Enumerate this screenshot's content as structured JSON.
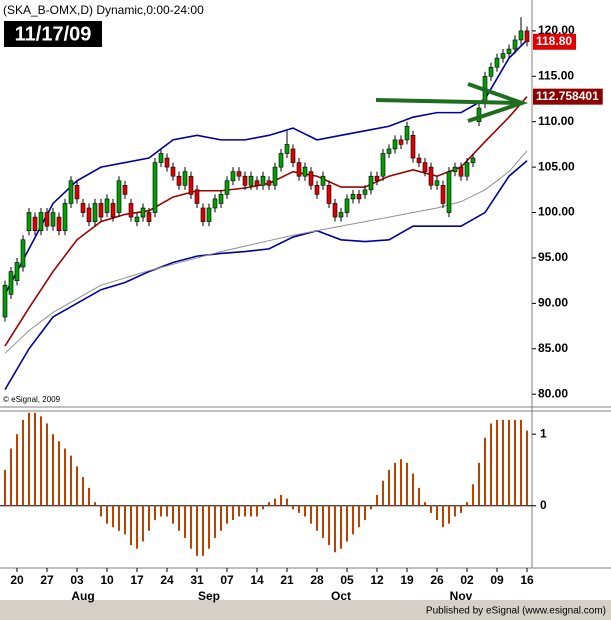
{
  "chart_data": {
    "type": "candlestick",
    "title": "(SKA_B-OMX,D) Dynamic,0:00-24:00",
    "date_label": "11/17/09",
    "copyright": "© eSignal, 2009",
    "footer": "Published by eSignal (www.esignal.com)",
    "categories": [
      null,
      null,
      "20",
      null,
      null,
      null,
      null,
      "27",
      null,
      null,
      null,
      null,
      "03",
      null,
      null,
      null,
      null,
      "10",
      null,
      null,
      null,
      null,
      "17",
      null,
      null,
      null,
      null,
      "24",
      null,
      null,
      null,
      null,
      "31",
      null,
      null,
      null,
      null,
      "07",
      null,
      null,
      null,
      null,
      "14",
      null,
      null,
      null,
      null,
      "21",
      null,
      null,
      null,
      null,
      "28",
      null,
      null,
      null,
      null,
      "05",
      null,
      null,
      null,
      null,
      "12",
      null,
      null,
      null,
      null,
      "19",
      null,
      null,
      null,
      null,
      "26",
      null,
      null,
      null,
      null,
      "02",
      null,
      null,
      null,
      null,
      "09",
      null,
      null,
      null,
      null,
      "16"
    ],
    "months": [
      null,
      null,
      null,
      null,
      null,
      null,
      null,
      null,
      null,
      null,
      null,
      null,
      null,
      "Aug",
      null,
      null,
      null,
      null,
      null,
      null,
      null,
      null,
      null,
      null,
      null,
      null,
      null,
      null,
      null,
      null,
      null,
      null,
      null,
      null,
      "Sep",
      null,
      null,
      null,
      null,
      null,
      null,
      null,
      null,
      null,
      null,
      null,
      null,
      null,
      null,
      null,
      null,
      null,
      null,
      null,
      null,
      null,
      "Oct",
      null,
      null,
      null,
      null,
      null,
      null,
      null,
      null,
      null,
      null,
      null,
      null,
      null,
      null,
      null,
      null,
      null,
      null,
      null,
      "Nov",
      null,
      null,
      null,
      null,
      null,
      null,
      null,
      null,
      null,
      null
    ],
    "ohlc": [
      [
        88.5,
        92.5,
        88,
        92
      ],
      [
        91,
        94,
        90.5,
        93.5
      ],
      [
        92.5,
        95,
        92,
        94.5
      ],
      [
        94,
        97.5,
        93.5,
        97
      ],
      [
        98,
        100.5,
        97.5,
        100
      ],
      [
        99.5,
        100,
        97.5,
        98
      ],
      [
        98,
        100.5,
        97.5,
        100
      ],
      [
        100,
        100.5,
        98,
        98.5
      ],
      [
        98.5,
        100.5,
        98,
        100
      ],
      [
        99.5,
        100,
        97.5,
        98
      ],
      [
        98,
        101.5,
        97.5,
        101
      ],
      [
        101,
        104,
        100.5,
        103.5
      ],
      [
        103,
        103.5,
        101,
        101.5
      ],
      [
        101,
        101.5,
        99.5,
        100
      ],
      [
        100.5,
        101,
        98.5,
        99
      ],
      [
        99,
        101.5,
        98.5,
        101
      ],
      [
        101,
        101.5,
        99,
        99.5
      ],
      [
        100,
        102,
        99.5,
        101.5
      ],
      [
        101,
        101.5,
        99,
        99.5
      ],
      [
        100,
        104,
        99.5,
        103.5
      ],
      [
        103,
        103.5,
        101.5,
        102
      ],
      [
        101,
        101.5,
        99,
        99.5
      ],
      [
        99,
        100,
        98.5,
        99.5
      ],
      [
        99.5,
        101,
        99,
        100.5
      ],
      [
        100,
        100.5,
        98.5,
        99
      ],
      [
        100,
        106,
        99.5,
        105.5
      ],
      [
        105.5,
        107,
        105,
        106.5
      ],
      [
        106,
        106.5,
        104.5,
        105
      ],
      [
        105,
        105.5,
        103.5,
        104
      ],
      [
        104,
        104.5,
        102.5,
        103
      ],
      [
        103,
        105,
        102.5,
        104.5
      ],
      [
        104,
        104.5,
        101.5,
        102
      ],
      [
        102.5,
        103,
        100.5,
        101
      ],
      [
        100.5,
        101,
        98.5,
        99
      ],
      [
        99,
        101,
        98.5,
        100.5
      ],
      [
        100.5,
        102,
        100,
        101.5
      ],
      [
        101,
        102.5,
        100.5,
        102
      ],
      [
        102,
        104,
        101.5,
        103.5
      ],
      [
        103.5,
        105,
        103,
        104.5
      ],
      [
        104.5,
        105,
        103.5,
        104
      ],
      [
        104,
        104.5,
        102.5,
        103
      ],
      [
        103,
        104.5,
        102.5,
        104
      ],
      [
        103.5,
        104,
        102.5,
        103
      ],
      [
        103,
        104.5,
        102.5,
        104
      ],
      [
        103.5,
        104,
        102.5,
        103
      ],
      [
        103,
        105.5,
        102.5,
        105
      ],
      [
        105,
        107,
        104.5,
        106.5
      ],
      [
        106.5,
        109,
        106,
        107.5
      ],
      [
        107,
        107.5,
        105,
        105.5
      ],
      [
        105.5,
        106,
        103.5,
        104
      ],
      [
        104,
        105.5,
        103.5,
        105
      ],
      [
        104.5,
        105,
        102.5,
        103
      ],
      [
        103,
        103.5,
        101.5,
        102
      ],
      [
        103,
        104.5,
        102.5,
        104
      ],
      [
        103,
        103.5,
        100.5,
        101
      ],
      [
        101,
        101.5,
        99,
        99.5
      ],
      [
        99.5,
        100.5,
        99,
        100
      ],
      [
        100,
        102,
        99.5,
        101.5
      ],
      [
        101.5,
        102.5,
        101,
        102
      ],
      [
        102,
        102.5,
        101,
        101.5
      ],
      [
        102,
        103,
        101.5,
        102.5
      ],
      [
        102.5,
        104.5,
        102,
        104
      ],
      [
        104,
        104.5,
        103,
        103.5
      ],
      [
        104,
        107,
        103.5,
        106.5
      ],
      [
        106.5,
        107.5,
        106,
        107
      ],
      [
        107,
        108.5,
        106.5,
        108
      ],
      [
        108,
        108.5,
        107,
        107.5
      ],
      [
        108,
        110,
        107.5,
        109.5
      ],
      [
        108.5,
        109,
        105.5,
        106
      ],
      [
        106,
        106.5,
        105,
        105.5
      ],
      [
        105.5,
        106,
        104,
        104.5
      ],
      [
        105,
        105.5,
        102.5,
        103
      ],
      [
        103,
        104,
        102.5,
        103.5
      ],
      [
        103,
        103.5,
        100.5,
        101
      ],
      [
        100,
        105,
        99.5,
        104.5
      ],
      [
        104.5,
        105.5,
        104,
        105
      ],
      [
        105,
        105.5,
        103.5,
        104
      ],
      [
        104,
        106,
        103.5,
        105.5
      ],
      [
        105.5,
        106.5,
        105,
        106
      ],
      [
        110,
        112,
        109.5,
        111.5
      ],
      [
        112,
        115.5,
        111.5,
        115
      ],
      [
        115,
        116.5,
        114.5,
        116
      ],
      [
        116,
        117.5,
        115.5,
        117
      ],
      [
        117,
        118,
        116.5,
        117.5
      ],
      [
        117.5,
        118.5,
        117,
        118
      ],
      [
        118,
        119.5,
        117.5,
        119
      ],
      [
        119,
        121.5,
        118.5,
        120
      ],
      [
        120,
        120.5,
        118.3,
        118.8
      ]
    ],
    "up_color": "#00a000",
    "down_color": "#e00000",
    "line_x": [
      0,
      4,
      8,
      12,
      16,
      20,
      24,
      28,
      32,
      36,
      40,
      44,
      48,
      52,
      56,
      60,
      64,
      68,
      72,
      76,
      80,
      84,
      87
    ],
    "lines": [
      {
        "color": "#0000a0",
        "values": [
          91,
          96,
          101,
          103.5,
          105,
          105.5,
          106,
          108,
          108.5,
          108,
          108,
          108.5,
          109.3,
          108,
          108.5,
          109,
          109.5,
          110.5,
          111,
          111,
          112.5,
          117,
          119
        ]
      },
      {
        "color": "#0000a0",
        "values": [
          80.5,
          85,
          88.5,
          90,
          91.5,
          92.3,
          93.5,
          94.5,
          95.2,
          95.5,
          95.7,
          96,
          97.3,
          98,
          97,
          96.8,
          97,
          98.5,
          98.5,
          98.5,
          100,
          104,
          105.7
        ]
      },
      {
        "color": "#a00000",
        "values": [
          85.3,
          89.5,
          93.5,
          97,
          99,
          99.8,
          100.2,
          101.7,
          102.4,
          102.4,
          102.7,
          103.2,
          104.5,
          104,
          102.8,
          102.8,
          104,
          104.7,
          104,
          105,
          107.8,
          110.5,
          112.76
        ]
      },
      {
        "color": "#909090",
        "values": [
          84.5,
          87,
          89,
          90.5,
          92,
          92.8,
          93.6,
          94.3,
          95,
          95.7,
          96.3,
          96.9,
          97.5,
          98,
          98.5,
          99,
          99.5,
          100,
          100.5,
          101.2,
          102.5,
          104.5,
          106.8
        ]
      }
    ],
    "ylim": [
      78.7,
      123.4
    ],
    "yticks": [
      {
        "value": 120,
        "label": "120.00"
      },
      {
        "value": 115,
        "label": "115.00"
      },
      {
        "value": 110,
        "label": "110.00"
      },
      {
        "value": 105,
        "label": "105.00"
      },
      {
        "value": 100,
        "label": "100.00"
      },
      {
        "value": 95,
        "label": "95.00"
      },
      {
        "value": 90,
        "label": "90.00"
      },
      {
        "value": 85,
        "label": "85.00"
      },
      {
        "value": 80,
        "label": "80.00"
      }
    ],
    "price_tags": [
      {
        "value": 118.8,
        "label": "118.80",
        "color": "#e00000"
      },
      {
        "value": 112.758401,
        "label": "112.758401",
        "color": "#8b0000"
      }
    ],
    "oscillator": {
      "color": "#c04000",
      "ylim": [
        -0.87,
        1.31
      ],
      "yticks": [
        1,
        0
      ],
      "values": [
        0.5,
        0.8,
        1.0,
        1.2,
        1.3,
        1.3,
        1.25,
        1.15,
        1.0,
        0.9,
        0.8,
        0.7,
        0.55,
        0.4,
        0.25,
        0.05,
        -0.15,
        -0.25,
        -0.3,
        -0.35,
        -0.4,
        -0.55,
        -0.6,
        -0.5,
        -0.35,
        -0.2,
        -0.15,
        -0.15,
        -0.25,
        -0.35,
        -0.45,
        -0.6,
        -0.7,
        -0.7,
        -0.6,
        -0.45,
        -0.35,
        -0.25,
        -0.2,
        -0.15,
        -0.15,
        -0.15,
        -0.15,
        -0.05,
        0.05,
        0.1,
        0.15,
        0.1,
        -0.05,
        -0.1,
        -0.15,
        -0.25,
        -0.35,
        -0.45,
        -0.55,
        -0.65,
        -0.6,
        -0.5,
        -0.4,
        -0.3,
        -0.2,
        -0.05,
        0.15,
        0.35,
        0.5,
        0.6,
        0.65,
        0.6,
        0.45,
        0.25,
        0.05,
        -0.1,
        -0.2,
        -0.3,
        -0.25,
        -0.15,
        -0.1,
        0.05,
        0.3,
        0.6,
        0.95,
        1.15,
        1.2,
        1.2,
        1.2,
        1.2,
        1.2,
        1.05
      ]
    }
  }
}
